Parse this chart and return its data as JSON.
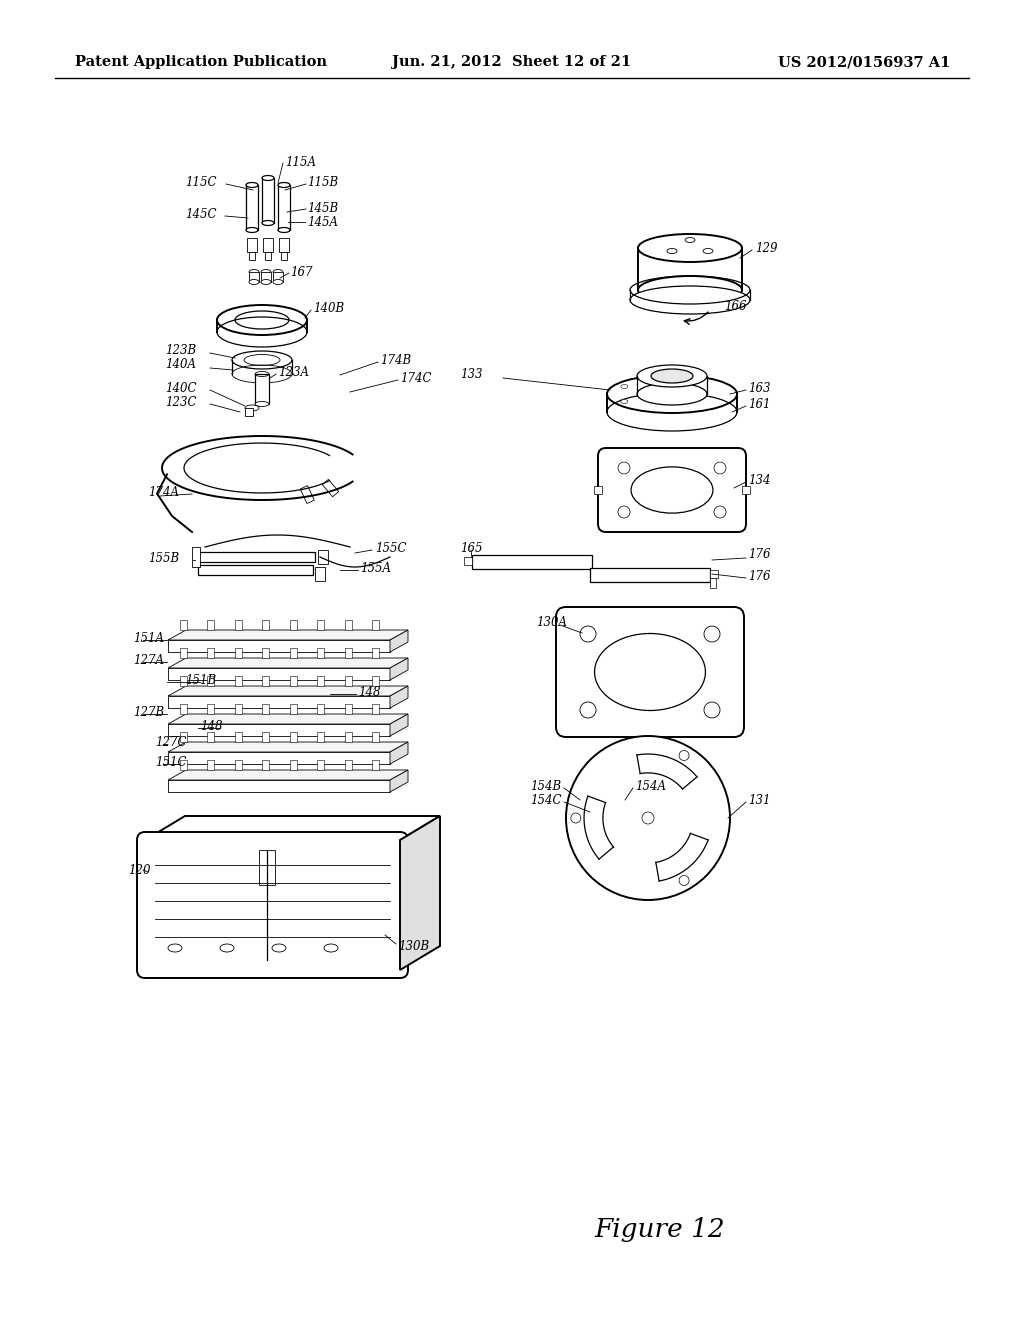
{
  "title_left": "Patent Application Publication",
  "title_center": "Jun. 21, 2012  Sheet 12 of 21",
  "title_right": "US 2012/0156937 A1",
  "figure_label": "Figure 12",
  "background_color": "#ffffff",
  "line_color": "#000000",
  "header_fontsize": 10.5,
  "figure_label_fontsize": 19,
  "annotation_fontsize": 8.5
}
